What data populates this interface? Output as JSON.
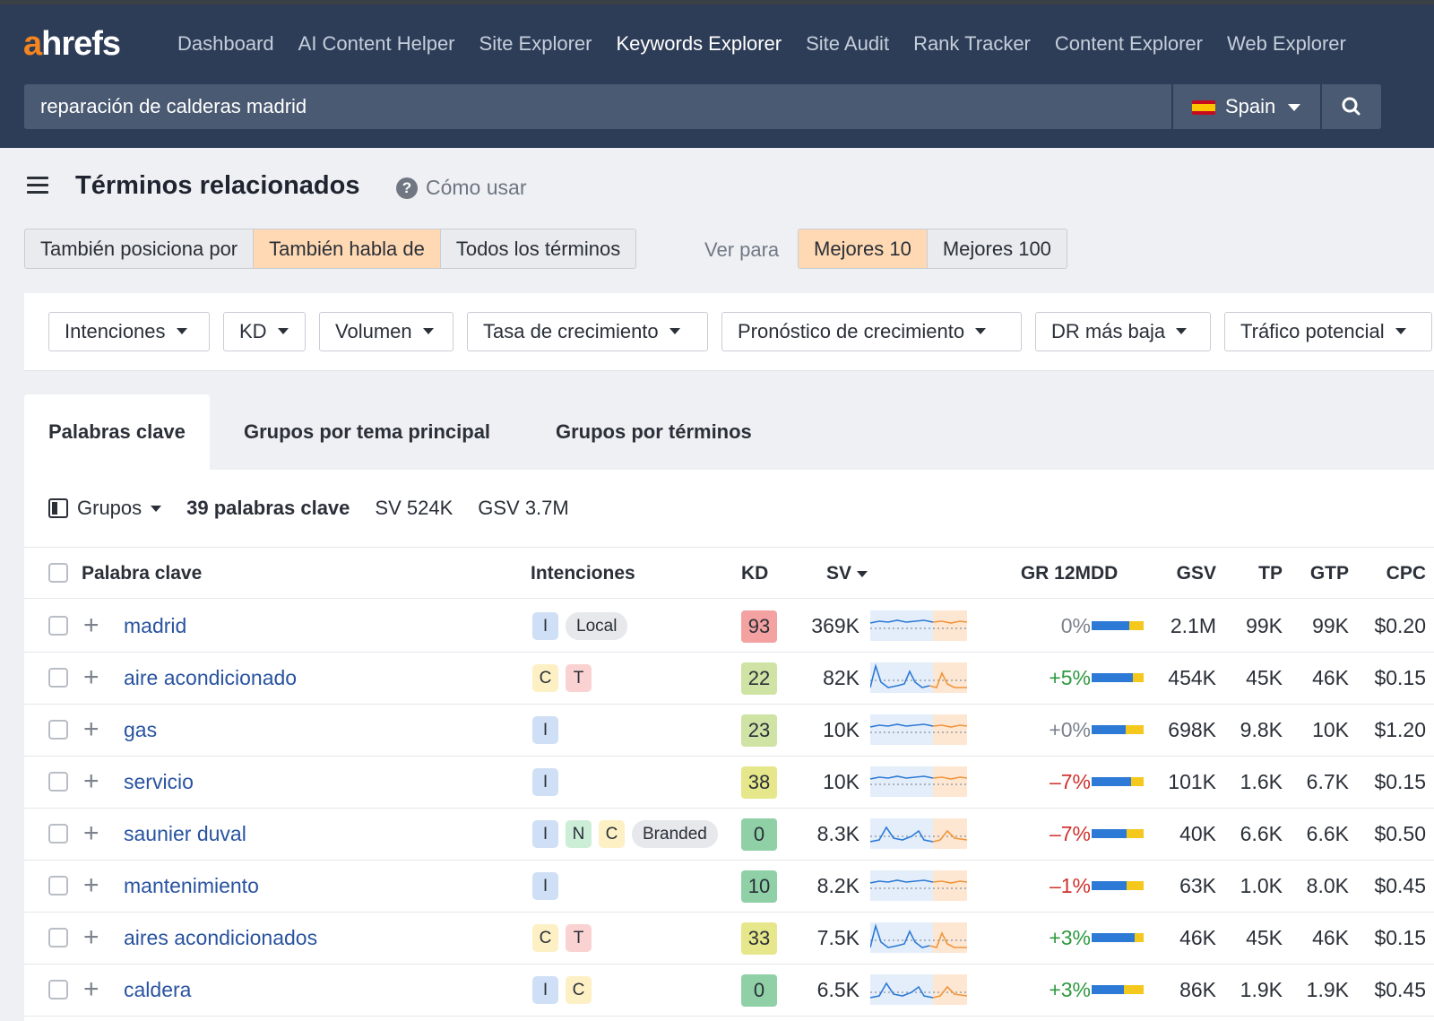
{
  "logo": {
    "a": "a",
    "hrefs": "hrefs"
  },
  "nav": [
    {
      "label": "Dashboard",
      "active": false
    },
    {
      "label": "AI Content Helper",
      "active": false
    },
    {
      "label": "Site Explorer",
      "active": false
    },
    {
      "label": "Keywords Explorer",
      "active": true
    },
    {
      "label": "Site Audit",
      "active": false
    },
    {
      "label": "Rank Tracker",
      "active": false
    },
    {
      "label": "Content Explorer",
      "active": false
    },
    {
      "label": "Web Explorer",
      "active": false
    }
  ],
  "search": {
    "value": "reparación de calderas madrid",
    "country": "Spain"
  },
  "page": {
    "title": "Términos relacionados",
    "help": "Cómo usar"
  },
  "mode_tabs": [
    "También posiciona por",
    "También habla de",
    "Todos los términos"
  ],
  "mode_selected": "También habla de",
  "ver_para": "Ver para",
  "top_tabs": [
    "Mejores 10",
    "Mejores 100"
  ],
  "top_selected": "Mejores 10",
  "filters": [
    "Intenciones",
    "KD",
    "Volumen",
    "Tasa de crecimiento",
    "Pronóstico de crecimiento",
    "DR más baja",
    "Tráfico potencial"
  ],
  "tabs": [
    {
      "label": "Palabras clave",
      "active": true
    },
    {
      "label": "Grupos por tema principal",
      "active": false
    },
    {
      "label": "Grupos por términos",
      "active": false
    }
  ],
  "summary": {
    "grupos": "Grupos",
    "count": "39 palabras clave",
    "sv": "SV 524K",
    "gsv": "GSV 3.7M"
  },
  "columns": {
    "keyword": "Palabra clave",
    "intents": "Intenciones",
    "kd": "KD",
    "sv": "SV",
    "gr": "GR 12M",
    "dd": "DD",
    "gsv": "GSV",
    "tp": "TP",
    "gtp": "GTP",
    "cpc": "CPC"
  },
  "colors": {
    "kd_red": "#f3a1a1",
    "kd_lightgreen": "#cfe3a4",
    "kd_yellow": "#e6e68a",
    "kd_green": "#8fd0a6",
    "spark_blue": "#2c7ad6",
    "spark_orange": "#f0953a"
  },
  "rows": [
    {
      "keyword": "madrid",
      "intents": [
        "I",
        "Local"
      ],
      "kd": "93",
      "kd_color": "#f3a1a1",
      "sv": "369K",
      "trend": "flat",
      "gr": "0%",
      "gr_sign": "neu",
      "dd_blue": 0.72,
      "gsv": "2.1M",
      "tp": "99K",
      "gtp": "99K",
      "cpc": "$0.20"
    },
    {
      "keyword": "aire acondicionado",
      "intents": [
        "C",
        "T"
      ],
      "kd": "22",
      "kd_color": "#cfe3a4",
      "sv": "82K",
      "trend": "seasonal",
      "gr": "+5%",
      "gr_sign": "pos",
      "dd_blue": 0.8,
      "gsv": "454K",
      "tp": "45K",
      "gtp": "46K",
      "cpc": "$0.15"
    },
    {
      "keyword": "gas",
      "intents": [
        "I"
      ],
      "kd": "23",
      "kd_color": "#cfe3a4",
      "sv": "10K",
      "trend": "flat",
      "gr": "+0%",
      "gr_sign": "neu",
      "dd_blue": 0.65,
      "gsv": "698K",
      "tp": "9.8K",
      "gtp": "10K",
      "cpc": "$1.20"
    },
    {
      "keyword": "servicio",
      "intents": [
        "I"
      ],
      "kd": "38",
      "kd_color": "#e6e68a",
      "sv": "10K",
      "trend": "flat",
      "gr": "–7%",
      "gr_sign": "neg",
      "dd_blue": 0.75,
      "gsv": "101K",
      "tp": "1.6K",
      "gtp": "6.7K",
      "cpc": "$0.15"
    },
    {
      "keyword": "saunier duval",
      "intents": [
        "I",
        "N",
        "C",
        "Branded"
      ],
      "kd": "0",
      "kd_color": "#8fd0a6",
      "sv": "8.3K",
      "trend": "bumpy",
      "gr": "–7%",
      "gr_sign": "neg",
      "dd_blue": 0.68,
      "gsv": "40K",
      "tp": "6.6K",
      "gtp": "6.6K",
      "cpc": "$0.50"
    },
    {
      "keyword": "mantenimiento",
      "intents": [
        "I"
      ],
      "kd": "10",
      "kd_color": "#8fd0a6",
      "sv": "8.2K",
      "trend": "flat",
      "gr": "–1%",
      "gr_sign": "neg",
      "dd_blue": 0.68,
      "gsv": "63K",
      "tp": "1.0K",
      "gtp": "8.0K",
      "cpc": "$0.45"
    },
    {
      "keyword": "aires acondicionados",
      "intents": [
        "C",
        "T"
      ],
      "kd": "33",
      "kd_color": "#e6e68a",
      "sv": "7.5K",
      "trend": "seasonal",
      "gr": "+3%",
      "gr_sign": "pos",
      "dd_blue": 0.82,
      "gsv": "46K",
      "tp": "45K",
      "gtp": "46K",
      "cpc": "$0.15"
    },
    {
      "keyword": "caldera",
      "intents": [
        "I",
        "C"
      ],
      "kd": "0",
      "kd_color": "#8fd0a6",
      "sv": "6.5K",
      "trend": "bumpy",
      "gr": "+3%",
      "gr_sign": "pos",
      "dd_blue": 0.62,
      "gsv": "86K",
      "tp": "1.9K",
      "gtp": "1.9K",
      "cpc": "$0.45"
    }
  ]
}
